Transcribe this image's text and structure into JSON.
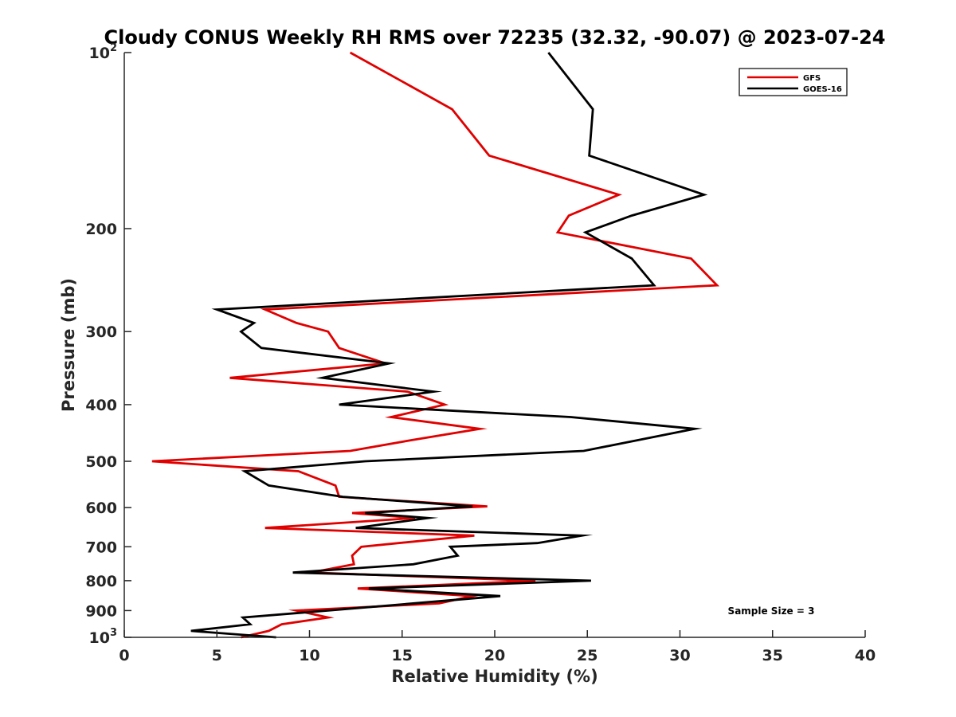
{
  "chart_data": {
    "type": "line",
    "title": "Cloudy CONUS Weekly RH RMS over 72235 (32.32, -90.07) @ 2023-07-24",
    "xlabel": "Relative Humidity (%)",
    "ylabel": "Pressure (mb)",
    "xlim": [
      0,
      40
    ],
    "ylim": [
      100,
      1000
    ],
    "y_scale": "log",
    "y_reversed": true,
    "grid": false,
    "legend_position": "top-right",
    "x_ticks": [
      0,
      5,
      10,
      15,
      20,
      25,
      30,
      35,
      40
    ],
    "x_tick_labels": [
      "0",
      "5",
      "10",
      "15",
      "20",
      "25",
      "30",
      "35",
      "40"
    ],
    "y_ticks": [
      {
        "value": 100,
        "base": "10",
        "sup": "2"
      },
      {
        "value": 200,
        "label": "200"
      },
      {
        "value": 300,
        "label": "300"
      },
      {
        "value": 400,
        "label": "400"
      },
      {
        "value": 500,
        "label": "500"
      },
      {
        "value": 600,
        "label": "600"
      },
      {
        "value": 700,
        "label": "700"
      },
      {
        "value": 800,
        "label": "800"
      },
      {
        "value": 900,
        "label": "900"
      },
      {
        "value": 1000,
        "base": "10",
        "sup": "3"
      }
    ],
    "annotation": "Sample Size = 3",
    "series": [
      {
        "name": "GFS",
        "color": "#e00000",
        "points": [
          [
            12.2,
            100
          ],
          [
            17.7,
            125
          ],
          [
            19.7,
            150
          ],
          [
            26.7,
            175
          ],
          [
            24.0,
            190
          ],
          [
            23.4,
            203
          ],
          [
            30.6,
            225
          ],
          [
            32.0,
            250
          ],
          [
            7.6,
            275
          ],
          [
            9.3,
            290
          ],
          [
            11.0,
            300
          ],
          [
            11.6,
            320
          ],
          [
            14.1,
            340
          ],
          [
            5.7,
            360
          ],
          [
            15.3,
            380
          ],
          [
            17.3,
            400
          ],
          [
            14.4,
            420
          ],
          [
            19.2,
            440
          ],
          [
            15.5,
            460
          ],
          [
            12.2,
            480
          ],
          [
            1.5,
            500
          ],
          [
            9.4,
            520
          ],
          [
            11.4,
            550
          ],
          [
            11.6,
            575
          ],
          [
            19.6,
            597
          ],
          [
            12.3,
            613
          ],
          [
            15.7,
            625
          ],
          [
            7.6,
            650
          ],
          [
            18.9,
            670
          ],
          [
            12.8,
            700
          ],
          [
            12.3,
            725
          ],
          [
            12.4,
            750
          ],
          [
            10.1,
            775
          ],
          [
            22.2,
            800
          ],
          [
            12.6,
            825
          ],
          [
            18.8,
            850
          ],
          [
            17.0,
            875
          ],
          [
            9.3,
            900
          ],
          [
            11.0,
            925
          ],
          [
            8.5,
            950
          ],
          [
            7.8,
            975
          ],
          [
            6.3,
            1000
          ]
        ]
      },
      {
        "name": "GOES-16",
        "color": "#000000",
        "points": [
          [
            22.9,
            100
          ],
          [
            25.3,
            125
          ],
          [
            25.1,
            150
          ],
          [
            31.3,
            175
          ],
          [
            27.4,
            190
          ],
          [
            24.9,
            203
          ],
          [
            27.4,
            225
          ],
          [
            28.6,
            250
          ],
          [
            5.0,
            275
          ],
          [
            7.0,
            290
          ],
          [
            6.3,
            300
          ],
          [
            7.4,
            320
          ],
          [
            14.3,
            340
          ],
          [
            10.7,
            360
          ],
          [
            16.7,
            380
          ],
          [
            11.6,
            400
          ],
          [
            24.1,
            420
          ],
          [
            30.8,
            440
          ],
          [
            24.8,
            480
          ],
          [
            13.0,
            500
          ],
          [
            6.5,
            520
          ],
          [
            7.8,
            550
          ],
          [
            11.8,
            575
          ],
          [
            18.8,
            597
          ],
          [
            13.0,
            613
          ],
          [
            16.4,
            625
          ],
          [
            12.5,
            650
          ],
          [
            24.7,
            670
          ],
          [
            22.3,
            690
          ],
          [
            17.6,
            700
          ],
          [
            18.0,
            725
          ],
          [
            15.6,
            750
          ],
          [
            9.1,
            775
          ],
          [
            25.2,
            800
          ],
          [
            13.2,
            825
          ],
          [
            20.3,
            850
          ],
          [
            11.0,
            900
          ],
          [
            6.4,
            925
          ],
          [
            6.8,
            950
          ],
          [
            3.6,
            975
          ],
          [
            8.2,
            1000
          ]
        ]
      }
    ]
  }
}
